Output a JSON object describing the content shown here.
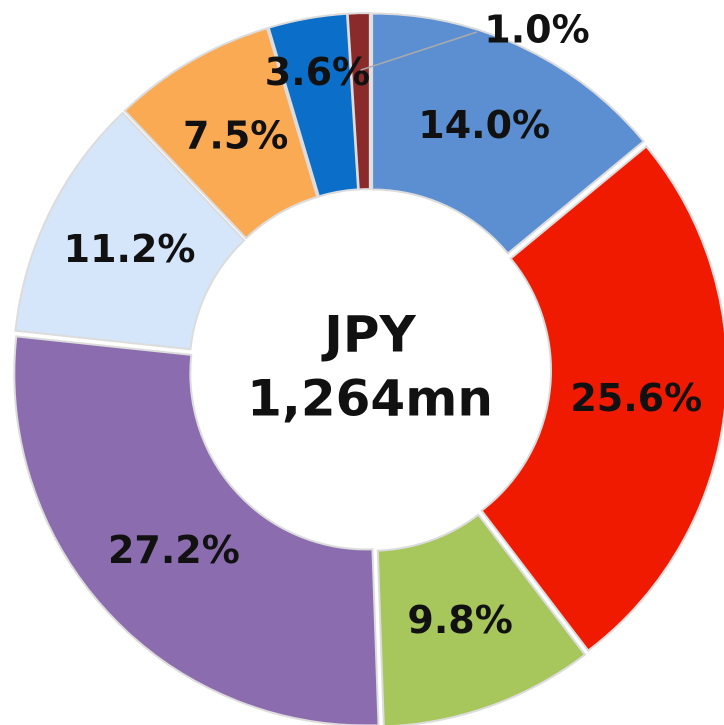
{
  "chart_data": {
    "type": "donut",
    "center_label": [
      "JPY",
      "1,264mn"
    ],
    "values": [
      14.0,
      25.6,
      9.8,
      27.2,
      11.2,
      7.5,
      3.6,
      1.0
    ],
    "value_labels": [
      "14.0%",
      "25.6%",
      "9.8%",
      "27.2%",
      "11.2%",
      "7.5%",
      "3.6%",
      "1.0%"
    ],
    "colors": [
      "#5b8fd1",
      "#ef1a00",
      "#a7c65c",
      "#8b6cae",
      "#d5e5fa",
      "#fbaa54",
      "#0b6fc9",
      "#8a2a2a"
    ]
  }
}
